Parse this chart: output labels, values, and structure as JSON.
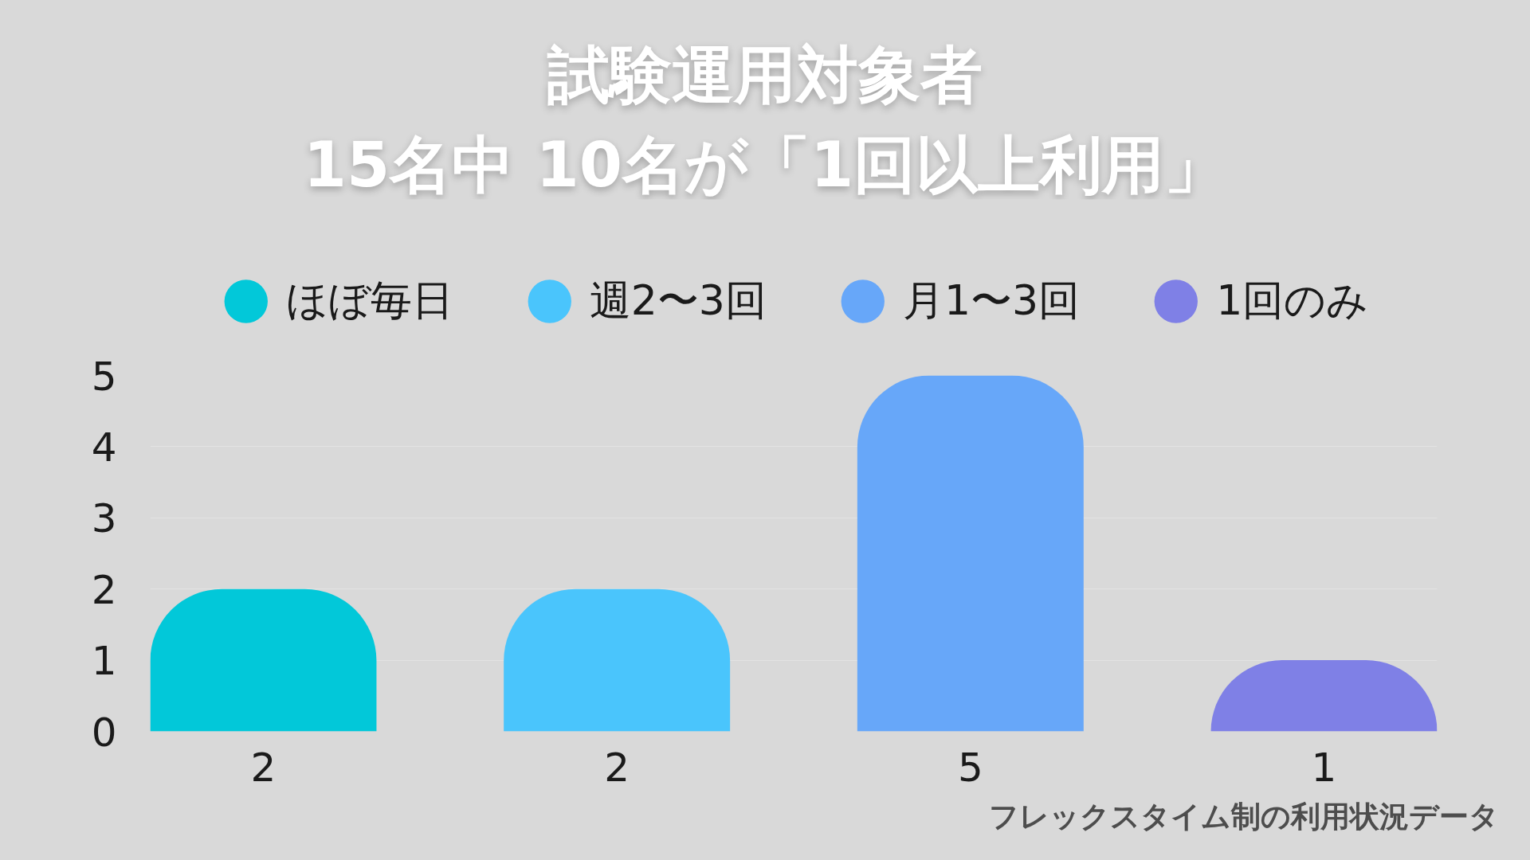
{
  "chart_data": {
    "type": "bar",
    "title": "試験運用対象者\n15名中 10名が「1回以上利用」",
    "categories": [
      null,
      null,
      null,
      null
    ],
    "series": [
      {
        "name": "ほぼ毎日",
        "color": "#02c8d9",
        "values": [
          2,
          null,
          null,
          null
        ]
      },
      {
        "name": "週2〜3回",
        "color": "#4ac5fc",
        "values": [
          null,
          2,
          null,
          null
        ]
      },
      {
        "name": "月1〜3回",
        "color": "#67a7f9",
        "values": [
          null,
          null,
          5,
          null
        ]
      },
      {
        "name": "1回のみ",
        "color": "#7f80e6",
        "values": [
          null,
          null,
          null,
          1
        ]
      }
    ],
    "ylim": [
      0,
      5
    ],
    "yticks": [
      0,
      1,
      2,
      3,
      4,
      5
    ],
    "grid": "y",
    "legend": "top",
    "tick_labels": "y",
    "data_labels": true,
    "annotations": [
      "フレックスタイム制の利用状況データ"
    ]
  }
}
